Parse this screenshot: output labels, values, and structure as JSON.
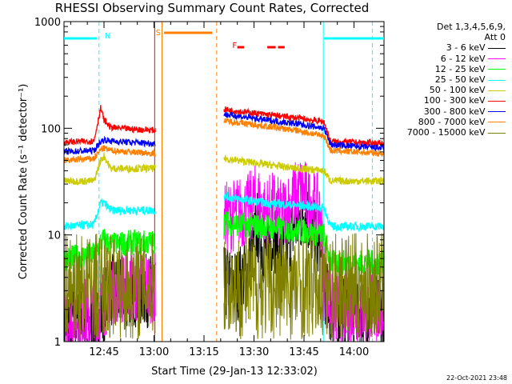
{
  "chart_data": {
    "type": "line",
    "title": "RHESSI Observing Summary Count Rates, Corrected",
    "xlabel": "Start Time (29-Jan-13 12:33:02)",
    "ylabel": "Corrected Count Rate (s⁻¹ detector⁻¹)",
    "yscale": "log",
    "ylim": [
      1,
      1000
    ],
    "xlim_minutes": [
      0,
      96
    ],
    "x_ticks": [
      {
        "label": "12:45",
        "minute": 12.0
      },
      {
        "label": "13:00",
        "minute": 27.0
      },
      {
        "label": "13:15",
        "minute": 42.0
      },
      {
        "label": "13:30",
        "minute": 57.0
      },
      {
        "label": "13:45",
        "minute": 72.0
      },
      {
        "label": "14:00",
        "minute": 87.0
      }
    ],
    "y_ticks": [
      {
        "label": "1",
        "value": 1
      },
      {
        "label": "10",
        "value": 10
      },
      {
        "label": "100",
        "value": 100
      },
      {
        "label": "1000",
        "value": 1000
      }
    ],
    "legend_header": [
      "Det 1,3,4,5,6,9,",
      "Att 0"
    ],
    "legend_position": "top-right",
    "series": [
      {
        "name": "3 - 6 keV",
        "color": "#000000",
        "x": [
          0,
          10,
          11,
          14,
          20,
          27.5,
          48,
          52,
          55,
          58,
          60,
          63,
          65,
          67,
          69,
          71,
          72,
          74,
          76,
          77,
          78,
          80,
          96
        ],
        "y": [
          1.5,
          1.5,
          1.8,
          3,
          3,
          3,
          3.5,
          3.5,
          4.5,
          12,
          7,
          10,
          6,
          8,
          12,
          14,
          18,
          12,
          8,
          6,
          3.5,
          2,
          2
        ]
      },
      {
        "name": "6 - 12 keV",
        "color": "#ff00ff",
        "x": [
          0,
          10,
          11,
          14,
          20,
          27.5,
          48,
          52,
          55,
          58,
          60,
          63,
          65,
          67,
          69,
          71,
          72,
          74,
          76,
          77,
          78,
          80,
          96
        ],
        "y": [
          1.8,
          1.8,
          2,
          3.2,
          3.3,
          3.3,
          14,
          16,
          17,
          22,
          16,
          18,
          15,
          18,
          22,
          26,
          24,
          20,
          17,
          15,
          3.5,
          2,
          2
        ]
      },
      {
        "name": "12 - 25 keV",
        "color": "#00ff00",
        "x": [
          0,
          9,
          11,
          12,
          14,
          20,
          27.5,
          48,
          60,
          70,
          78,
          80,
          96
        ],
        "y": [
          6,
          6.5,
          8.5,
          9,
          8,
          8.5,
          8.5,
          13,
          12,
          11,
          10,
          5.5,
          5.5
        ]
      },
      {
        "name": "25 - 50 keV",
        "color": "#00ffff",
        "x": [
          0,
          9,
          11,
          12,
          14,
          20,
          27.5,
          48,
          60,
          70,
          78,
          80,
          96
        ],
        "y": [
          12,
          12.5,
          20,
          20,
          17,
          17,
          17,
          23,
          20,
          19,
          18,
          12,
          12
        ]
      },
      {
        "name": "50 - 100 keV",
        "color": "#cccc00",
        "x": [
          0,
          9,
          11,
          12,
          14,
          20,
          27.5,
          48,
          60,
          70,
          78,
          80,
          96
        ],
        "y": [
          32,
          32,
          50,
          55,
          42,
          42,
          42,
          52,
          46,
          42,
          40,
          32,
          32
        ]
      },
      {
        "name": "100 - 300 keV",
        "color": "#ff0000",
        "x": [
          0,
          9,
          11,
          12,
          14,
          20,
          27.5,
          48,
          60,
          70,
          78,
          80,
          96
        ],
        "y": [
          74,
          76,
          155,
          120,
          102,
          98,
          96,
          150,
          135,
          125,
          115,
          75,
          72
        ]
      },
      {
        "name": "300 - 800 keV",
        "color": "#0000ff",
        "x": [
          0,
          9,
          11,
          12,
          14,
          20,
          27.5,
          48,
          60,
          70,
          78,
          80,
          96
        ],
        "y": [
          60,
          62,
          75,
          78,
          76,
          74,
          72,
          135,
          120,
          110,
          100,
          70,
          65
        ]
      },
      {
        "name": "800 - 7000 keV",
        "color": "#ff8000",
        "x": [
          0,
          9,
          11,
          12,
          14,
          20,
          27.5,
          48,
          60,
          70,
          78,
          80,
          96
        ],
        "y": [
          50,
          52,
          63,
          65,
          62,
          60,
          58,
          118,
          105,
          95,
          85,
          62,
          58
        ]
      },
      {
        "name": "7000 - 15000 keV",
        "color": "#808000",
        "x": [
          0,
          96
        ],
        "y": [
          3.3,
          3.3
        ]
      }
    ],
    "annotations": [
      {
        "label": "N",
        "color": "#00ffff"
      },
      {
        "label": "S",
        "color": "#ff8000"
      },
      {
        "label": "F",
        "color": "#ff0000"
      }
    ],
    "timestamp": "22-Oct-2021 23:48"
  }
}
